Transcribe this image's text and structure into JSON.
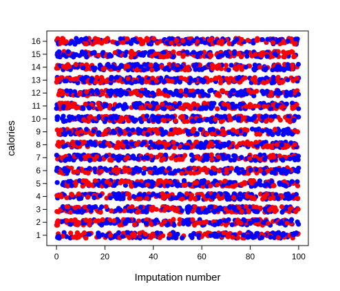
{
  "chart_data": {
    "type": "scatter",
    "title": "",
    "xlabel": "Imputation number",
    "ylabel": "calories",
    "xlim": [
      -4,
      104
    ],
    "ylim": [
      0.2,
      16.8
    ],
    "xticks": [
      0,
      20,
      40,
      60,
      80,
      100
    ],
    "yticks": [
      1,
      2,
      3,
      4,
      5,
      6,
      7,
      8,
      9,
      10,
      11,
      12,
      13,
      14,
      15,
      16
    ],
    "grid": false,
    "legend": "none",
    "x_range": [
      0,
      100
    ],
    "y_levels": [
      1,
      2,
      3,
      4,
      5,
      6,
      7,
      8,
      9,
      10,
      11,
      12,
      13,
      14,
      15,
      16
    ],
    "series": [
      {
        "color": "#ff0000"
      },
      {
        "color": "#0000ff"
      }
    ]
  }
}
